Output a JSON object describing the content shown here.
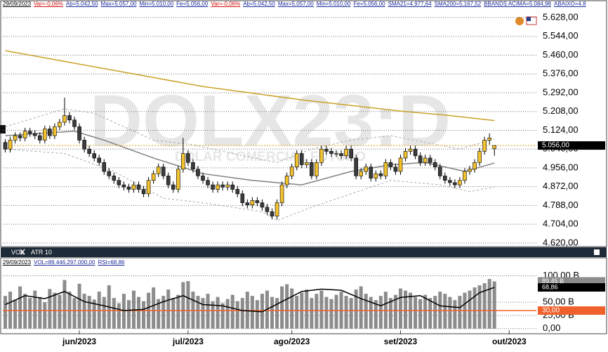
{
  "chart_data": [
    {
      "type": "candlestick",
      "title": "DOLX23:D",
      "subtitle": "DOLAR COMERCIAL FUTURO",
      "header": [
        {
          "text": "29/09/2023",
          "color": "#000000"
        },
        {
          "text": "Var=-0,06%",
          "color": "#d01010"
        },
        {
          "text": "Ab=5.042,50",
          "color": "#1a2a9a"
        },
        {
          "text": "Max=5.057,00",
          "color": "#1a2a9a"
        },
        {
          "text": "Min=5.010,00",
          "color": "#1a2a9a"
        },
        {
          "text": "Fe=5.056,00",
          "color": "#1a2a9a"
        },
        {
          "text": "Var=-0,06%",
          "color": "#d01010"
        },
        {
          "text": "Ab=5.042,50",
          "color": "#1a2a9a"
        },
        {
          "text": "Max=5.057,00",
          "color": "#1a2a9a"
        },
        {
          "text": "Min=5.010,00",
          "color": "#1a2a9a"
        },
        {
          "text": "Fe=5.056,00",
          "color": "#1a2a9a"
        },
        {
          "text": "SMA21=4.977,64",
          "color": "#1a2a9a"
        },
        {
          "text": "SMA200=5.167,52",
          "color": "#1a2a9a"
        },
        {
          "text": "BBANDS ACIMA=5.084,98",
          "color": "#1a2a9a"
        },
        {
          "text": "ABAIXO=4.8",
          "color": "#1a2a9a"
        }
      ],
      "open": [
        5070,
        5040,
        5080,
        5100,
        5090,
        5120,
        5110,
        5100,
        5080,
        5130,
        5100,
        5140,
        5160,
        5190,
        5170,
        5140,
        5080,
        5040,
        5020,
        5000,
        4980,
        4940,
        4920,
        4900,
        4880,
        4870,
        4860,
        4880,
        4860,
        4840,
        4900,
        4930,
        4960,
        4920,
        4880,
        4860,
        4950,
        5020,
        4980,
        4950,
        4920,
        4900,
        4880,
        4860,
        4880,
        4870,
        4880,
        4860,
        4840,
        4800,
        4790,
        4810,
        4800,
        4780,
        4760,
        4740,
        4800,
        4880,
        4920,
        4960,
        5020,
        4970,
        4980,
        4920,
        4980,
        5040,
        5030,
        5020,
        5020,
        5010,
        5040,
        5000,
        4920,
        4940,
        4960,
        4910,
        4930,
        4920,
        4980,
        4960,
        4940,
        5000,
        5030,
        5040,
        5010,
        4980,
        5000,
        4980,
        4960,
        4920,
        4900,
        4890,
        4880,
        4900,
        4940,
        4950,
        4980,
        5030,
        5080,
        5042.5
      ],
      "high": [
        5085,
        5095,
        5115,
        5115,
        5135,
        5135,
        5125,
        5115,
        5145,
        5145,
        5155,
        5175,
        5270,
        5205,
        5185,
        5155,
        5095,
        5055,
        5035,
        5015,
        4995,
        4955,
        4935,
        4915,
        4895,
        4885,
        4895,
        4895,
        4875,
        4915,
        4945,
        4975,
        4975,
        4935,
        4895,
        4965,
        5090,
        5035,
        4995,
        4965,
        4935,
        4915,
        4895,
        4895,
        4895,
        4895,
        4895,
        4875,
        4855,
        4815,
        4825,
        4825,
        4815,
        4795,
        4775,
        4815,
        4895,
        4935,
        4975,
        5035,
        5035,
        4995,
        4995,
        4995,
        5055,
        5055,
        5045,
        5035,
        5035,
        5055,
        5055,
        5015,
        4955,
        4975,
        4975,
        4945,
        4945,
        4995,
        4995,
        4975,
        5015,
        5045,
        5055,
        5055,
        5025,
        5015,
        5015,
        4995,
        4975,
        4935,
        4915,
        4905,
        4915,
        4955,
        4965,
        4995,
        5045,
        5095,
        5110,
        5057
      ],
      "low": [
        5025,
        5025,
        5065,
        5075,
        5075,
        5095,
        5085,
        5065,
        5065,
        5085,
        5085,
        5125,
        5145,
        5155,
        5125,
        5065,
        5025,
        5005,
        4985,
        4965,
        4925,
        4905,
        4885,
        4865,
        4855,
        4845,
        4845,
        4845,
        4825,
        4825,
        4885,
        4915,
        4905,
        4865,
        4845,
        4845,
        4935,
        4965,
        4935,
        4905,
        4885,
        4865,
        4845,
        4845,
        4855,
        4855,
        4845,
        4825,
        4785,
        4775,
        4775,
        4785,
        4765,
        4745,
        4725,
        4725,
        4785,
        4865,
        4905,
        4945,
        4955,
        4955,
        4905,
        4905,
        4965,
        5015,
        5005,
        5005,
        4995,
        4995,
        4985,
        4905,
        4905,
        4925,
        4895,
        4895,
        4905,
        4905,
        4945,
        4925,
        4925,
        4985,
        5015,
        4995,
        4965,
        4965,
        4965,
        4945,
        4905,
        4885,
        4875,
        4865,
        4865,
        4885,
        4925,
        4935,
        4965,
        5015,
        5060,
        5010
      ],
      "close": [
        5040,
        5080,
        5100,
        5090,
        5120,
        5110,
        5100,
        5080,
        5130,
        5100,
        5140,
        5160,
        5190,
        5170,
        5140,
        5080,
        5040,
        5020,
        5000,
        4980,
        4940,
        4920,
        4900,
        4880,
        4870,
        4860,
        4880,
        4860,
        4840,
        4900,
        4930,
        4960,
        4920,
        4880,
        4860,
        4950,
        5020,
        4980,
        4950,
        4920,
        4900,
        4880,
        4860,
        4880,
        4870,
        4880,
        4860,
        4840,
        4800,
        4790,
        4810,
        4800,
        4780,
        4760,
        4740,
        4800,
        4880,
        4920,
        4960,
        5020,
        4970,
        4980,
        4920,
        4980,
        5040,
        5030,
        5020,
        5020,
        5010,
        5040,
        5000,
        4920,
        4940,
        4960,
        4910,
        4930,
        4920,
        4980,
        4960,
        4940,
        5000,
        5030,
        5040,
        5010,
        4980,
        5000,
        4980,
        4960,
        4920,
        4900,
        4890,
        4880,
        4900,
        4940,
        4950,
        4980,
        5030,
        5080,
        5090,
        5056
      ],
      "up_color": "#f2c12e",
      "down_color": "#3c3c3c",
      "lines": [
        {
          "name": "SMA200",
          "color": "#c9a227",
          "dash": false,
          "x": [
            0,
            10,
            20,
            30,
            40,
            50,
            60,
            70,
            80,
            90,
            99
          ],
          "values": [
            5480,
            5440,
            5400,
            5360,
            5320,
            5290,
            5260,
            5235,
            5210,
            5190,
            5167.52
          ]
        },
        {
          "name": "SMA21",
          "color": "#808080",
          "dash": false,
          "x": [
            0,
            14,
            20,
            30,
            40,
            50,
            60,
            70,
            78,
            85,
            93,
            99
          ],
          "values": [
            5100,
            5120,
            5080,
            5000,
            4930,
            4900,
            4880,
            4940,
            4970,
            4980,
            4940,
            4977.64
          ]
        },
        {
          "name": "BBANDS ACIMA",
          "color": "#a8a8a8",
          "dash": true,
          "x": [
            0,
            12,
            18,
            30,
            38,
            46,
            55,
            62,
            70,
            78,
            85,
            92,
            99
          ],
          "values": [
            5140,
            5220,
            5200,
            5080,
            5060,
            5020,
            4980,
            5040,
            5080,
            5100,
            5070,
            5040,
            5084.98
          ]
        },
        {
          "name": "ABAIXO",
          "color": "#a8a8a8",
          "dash": true,
          "x": [
            0,
            12,
            22,
            32,
            40,
            52,
            55,
            62,
            70,
            78,
            88,
            94,
            99
          ],
          "values": [
            5040,
            5020,
            4940,
            4820,
            4800,
            4760,
            4720,
            4780,
            4840,
            4900,
            4880,
            4850,
            4870
          ]
        }
      ],
      "last_price": {
        "value": 5056,
        "label": "5.056,00"
      },
      "ylim": [
        4607,
        5691
      ],
      "yticks": [
        {
          "value": 5628,
          "label": "5.628,00"
        },
        {
          "value": 5544,
          "label": "5.544,00"
        },
        {
          "value": 5460,
          "label": "5.460,00"
        },
        {
          "value": 5376,
          "label": "5.376,00"
        },
        {
          "value": 5292,
          "label": "5.292,00"
        },
        {
          "value": 5208,
          "label": "5.208,00"
        },
        {
          "value": 5124,
          "label": "5.124,00"
        },
        {
          "value": 5040,
          "label": "5.040,00"
        },
        {
          "value": 4956,
          "label": "4.956,00"
        },
        {
          "value": 4872,
          "label": "4.872,00"
        },
        {
          "value": 4788,
          "label": "4.788,00"
        },
        {
          "value": 4704,
          "label": "4.704,00"
        },
        {
          "value": 4620,
          "label": "4.620,00"
        }
      ],
      "xlim": [
        -0.5,
        107.5
      ],
      "xticks": [
        {
          "value": 15,
          "label": "jun/2023"
        },
        {
          "value": 37,
          "label": "jul/2023"
        },
        {
          "value": 58,
          "label": "ago/2023"
        },
        {
          "value": 80,
          "label": "set/2023"
        },
        {
          "value": 102,
          "label": "out/2023"
        }
      ],
      "grid": true
    },
    {
      "type": "bar",
      "tabs": [
        "VOL",
        "ATR 10"
      ],
      "header": [
        {
          "text": "29/09/2023",
          "color": "#000000"
        },
        {
          "text": "VOL=89.446.297.000,00",
          "color": "#1a2a9a"
        },
        {
          "text": "RSI=68,86",
          "color": "#1a2a9a"
        }
      ],
      "color": "#8c8c8c",
      "values": [
        62,
        70,
        55,
        80,
        66,
        58,
        72,
        60,
        50,
        75,
        68,
        64,
        92,
        70,
        58,
        85,
        66,
        62,
        55,
        70,
        60,
        82,
        58,
        48,
        66,
        54,
        72,
        60,
        52,
        68,
        78,
        56,
        62,
        74,
        58,
        64,
        88,
        90,
        70,
        62,
        58,
        66,
        52,
        60,
        48,
        56,
        64,
        52,
        58,
        70,
        62,
        54,
        66,
        72,
        60,
        58,
        80,
        84,
        76,
        62,
        68,
        74,
        58,
        66,
        72,
        60,
        56,
        64,
        70,
        62,
        58,
        74,
        80,
        66,
        60,
        54,
        62,
        70,
        58,
        64,
        76,
        72,
        68,
        60,
        56,
        64,
        58,
        62,
        70,
        66,
        60,
        54,
        62,
        68,
        72,
        78,
        82,
        86,
        94,
        89.45
      ],
      "last_value": {
        "value": 89.45,
        "label": "89,45 B"
      },
      "ylim": [
        -3,
        130
      ],
      "yticks": [
        {
          "value": 0,
          "label": "0,00"
        },
        {
          "value": 25,
          "label": "25,00 B"
        },
        {
          "value": 50,
          "label": "50,00 B"
        },
        {
          "value": 100,
          "label": "100,00 B"
        }
      ],
      "series": [
        {
          "name": "RSI",
          "color": "#000000",
          "axis": "y2",
          "x": [
            0,
            4,
            8,
            12,
            16,
            20,
            24,
            28,
            32,
            36,
            40,
            44,
            48,
            52,
            56,
            60,
            64,
            68,
            72,
            76,
            80,
            84,
            88,
            92,
            96,
            99
          ],
          "values": [
            40,
            55,
            50,
            62,
            45,
            38,
            30,
            32,
            45,
            55,
            40,
            38,
            30,
            28,
            45,
            62,
            66,
            64,
            50,
            38,
            52,
            55,
            38,
            35,
            60,
            68.86
          ]
        }
      ],
      "rsi_last": {
        "value": 68.86,
        "label": "68,86"
      },
      "y2lim": [
        -2.9,
        114.8
      ],
      "y2ticks": [
        {
          "value": 30,
          "label": "30,00"
        }
      ],
      "level_color": "#f0602a",
      "xlim": [
        -0.5,
        107.5
      ]
    }
  ]
}
